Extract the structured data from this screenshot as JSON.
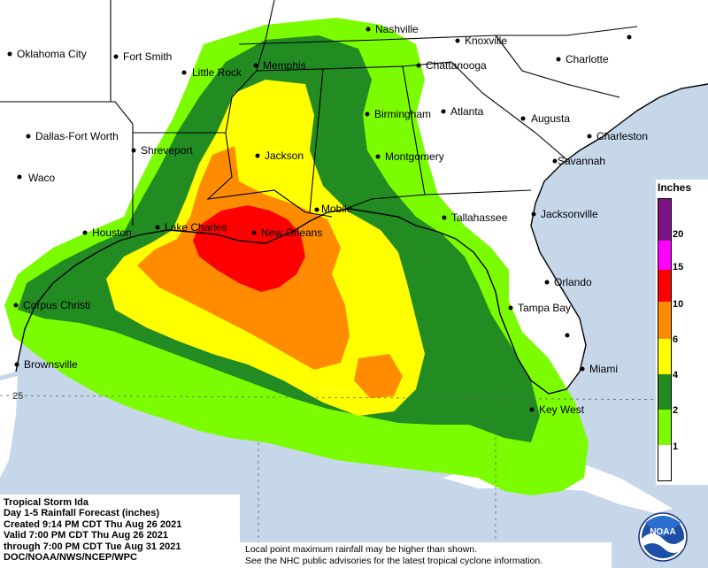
{
  "legend": {
    "title": "Inches",
    "ticks": [
      "20",
      "15",
      "10",
      "6",
      "4",
      "2",
      "1"
    ],
    "colors": {
      "c20": "#7b1382",
      "c15": "#ff00ff",
      "c10": "#ff0000",
      "c6": "#ff8c00",
      "c4": "#ffff00",
      "c2": "#228b22",
      "c1": "#7cfc00",
      "c0": "#ffffff"
    }
  },
  "info": {
    "line1": "Tropical Storm Ida",
    "line2": "Day 1-5 Rainfall Forecast (inches)",
    "line3": "Created 9:14 PM CDT Thu Aug 26 2021",
    "line4": "Valid 7:00 PM CDT Thu Aug 26 2021",
    "line5": "through 7:00 PM CDT Tue Aug 31 2021",
    "line6": "DOC/NOAA/NWS/NCEP/WPC"
  },
  "note": {
    "line1": "Local point maximum rainfall may be higher than shown.",
    "line2": "See the NHC public advisories for the latest tropical cyclone information."
  },
  "latitude_label": "25",
  "logo_text": "NOAA",
  "cities": [
    "Oklahoma City",
    "Fort Smith",
    "Little Rock",
    "Memphis",
    "Nashville",
    "Knoxville",
    "Chattanooga",
    "Charlotte",
    "Dallas-Fort Worth",
    "Shreveport",
    "Jackson",
    "Birmingham",
    "Atlanta",
    "Augusta",
    "Charleston",
    "Savannah",
    "Waco",
    "Montgomery",
    "Mobile",
    "Tallahassee",
    "Jacksonville",
    "Houston",
    "Lake Charles",
    "New Orleans",
    "Orlando",
    "Tampa Bay",
    "Corpus Christi",
    "Brownsville",
    "Miami",
    "Key West"
  ]
}
